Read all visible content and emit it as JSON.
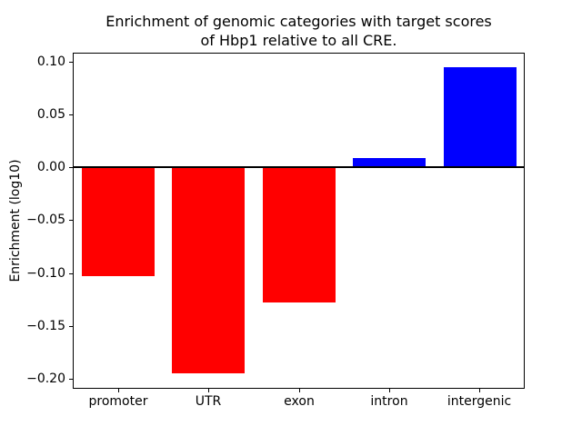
{
  "chart_data": {
    "type": "bar",
    "title_lines": [
      "Enrichment of genomic categories with target scores",
      "of Hbp1 relative to all CRE."
    ],
    "categories": [
      "promoter",
      "UTR",
      "exon",
      "intron",
      "intergenic"
    ],
    "values": [
      -0.103,
      -0.195,
      -0.128,
      0.009,
      0.095
    ],
    "bar_colors": [
      "#ff0000",
      "#ff0000",
      "#ff0000",
      "#0000ff",
      "#0000ff"
    ],
    "negative_color": "#ff0000",
    "positive_color": "#0000ff",
    "xlabel": "",
    "ylabel": "Enrichment (log10)",
    "ylim": [
      -0.2095,
      0.1085
    ],
    "yticks": [
      0.1,
      0.05,
      0.0,
      -0.05,
      -0.1,
      -0.15,
      -0.2
    ],
    "grid": false,
    "zero_line": true,
    "legend": "none",
    "background": "#ffffff",
    "axis_color": "#000000"
  }
}
